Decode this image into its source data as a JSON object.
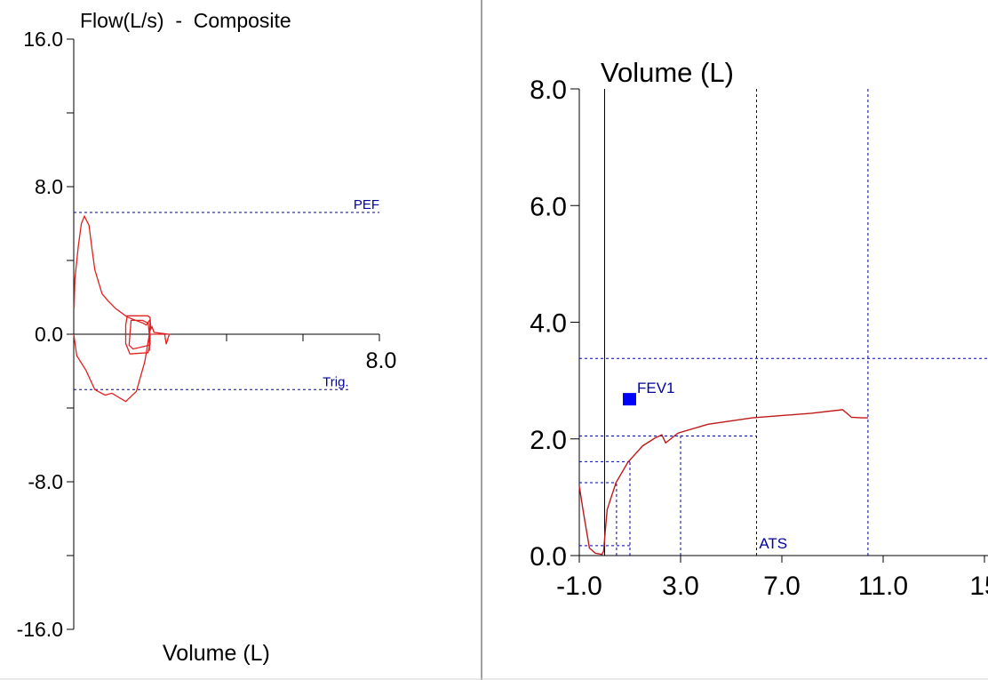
{
  "chart_data": [
    {
      "type": "line",
      "title": "Flow(L/s)  -  Composite",
      "xlabel": "Volume (L)",
      "ylabel": "Flow(L/s)",
      "xlim": [
        0,
        8
      ],
      "ylim": [
        -16,
        16
      ],
      "x_tick_labels": [
        {
          "value": 8,
          "label": "8.0"
        }
      ],
      "x_ticks": [
        2,
        4,
        6,
        8
      ],
      "y_tick_labels": [
        {
          "value": 16,
          "label": "16.0"
        },
        {
          "value": 8,
          "label": "8.0"
        },
        {
          "value": 0,
          "label": "0.0"
        },
        {
          "value": -8,
          "label": "-8.0"
        },
        {
          "value": -16,
          "label": "-16.0"
        }
      ],
      "y_ticks": [
        16,
        12,
        8,
        4,
        0,
        -4,
        -8,
        -12,
        -16
      ],
      "reference_lines": [
        {
          "name": "PEF",
          "label": "PEF",
          "y": 6.6,
          "x_range": [
            0,
            8
          ]
        },
        {
          "name": "Trig",
          "label": "Trig.",
          "y": -3.0,
          "x_range": [
            0,
            7.2
          ]
        }
      ],
      "series": [
        {
          "name": "flow-volume-loop",
          "color": "#e02020",
          "points": [
            [
              0.01,
              1.4
            ],
            [
              0.03,
              3.0
            ],
            [
              0.12,
              4.8
            ],
            [
              0.2,
              6.0
            ],
            [
              0.28,
              6.4
            ],
            [
              0.4,
              5.9
            ],
            [
              0.48,
              4.6
            ],
            [
              0.55,
              3.5
            ],
            [
              0.74,
              2.2
            ],
            [
              0.9,
              1.8
            ],
            [
              1.09,
              1.4
            ],
            [
              1.4,
              0.93
            ],
            [
              1.79,
              0.62
            ],
            [
              1.9,
              0.5
            ],
            [
              2.0,
              0.8
            ],
            [
              2.02,
              0.29
            ],
            [
              2.05,
              0.4
            ],
            [
              2.1,
              0.1
            ],
            [
              2.3,
              0.05
            ],
            [
              2.5,
              0.0
            ],
            [
              2.42,
              -0.54
            ],
            [
              2.38,
              0.0
            ],
            [
              2.0,
              0.0
            ],
            [
              1.98,
              -0.9
            ],
            [
              2.0,
              0.9
            ],
            [
              1.94,
              1.0
            ],
            [
              1.6,
              1.0
            ],
            [
              1.4,
              1.0
            ],
            [
              1.36,
              0.5
            ],
            [
              1.36,
              -0.5
            ],
            [
              1.47,
              -1.07
            ],
            [
              1.94,
              -1.0
            ],
            [
              2.0,
              -0.5
            ],
            [
              1.95,
              0.6
            ],
            [
              1.8,
              0.75
            ],
            [
              1.5,
              0.75
            ],
            [
              1.45,
              -0.6
            ],
            [
              1.55,
              -0.8
            ],
            [
              1.98,
              -0.6
            ],
            [
              1.98,
              0.0
            ],
            [
              1.86,
              -1.48
            ],
            [
              1.64,
              -3.1
            ],
            [
              1.36,
              -3.65
            ],
            [
              1.0,
              -3.2
            ],
            [
              0.82,
              -3.3
            ],
            [
              0.55,
              -3.0
            ],
            [
              0.32,
              -1.96
            ],
            [
              0.08,
              -1.16
            ],
            [
              0.0,
              0.0
            ]
          ]
        }
      ]
    },
    {
      "type": "line",
      "title": "Volume (L)",
      "ylabel": "Volume (L)",
      "xlim": [
        -1,
        15
      ],
      "ylim": [
        0,
        8
      ],
      "x_tick_labels": [
        {
          "value": -1,
          "label": "-1.0"
        },
        {
          "value": 3,
          "label": "3.0"
        },
        {
          "value": 7,
          "label": "7.0"
        },
        {
          "value": 11,
          "label": "11.0"
        },
        {
          "value": 15,
          "label": "15"
        }
      ],
      "y_tick_labels": [
        {
          "value": 8,
          "label": "8.0"
        },
        {
          "value": 6,
          "label": "6.0"
        },
        {
          "value": 4,
          "label": "4.0"
        },
        {
          "value": 2,
          "label": "2.0"
        },
        {
          "value": 0,
          "label": "0.0"
        }
      ],
      "zero_time_line": 0,
      "reference_lines_h": [
        {
          "y": 3.38,
          "x_range": [
            -1,
            15.2
          ]
        },
        {
          "y": 2.05,
          "x_range": [
            -1,
            6.0
          ]
        },
        {
          "y": 1.61,
          "x_range": [
            -1,
            1.0
          ]
        },
        {
          "y": 1.25,
          "x_range": [
            -1,
            0.47
          ]
        },
        {
          "y": 0.17,
          "x_range": [
            -1,
            1.0
          ]
        }
      ],
      "reference_lines_v": [
        {
          "x": 6.0,
          "y_range": [
            0,
            8
          ]
        },
        {
          "x": 10.4,
          "y_range": [
            0,
            8
          ]
        },
        {
          "x": 3.0,
          "y_range": [
            0,
            2.05
          ]
        },
        {
          "x": 1.0,
          "y_range": [
            0,
            1.61
          ]
        },
        {
          "x": 0.47,
          "y_range": [
            0,
            1.25
          ]
        }
      ],
      "markers": [
        {
          "name": "FEV1",
          "label": "FEV1",
          "x": 1.0,
          "y": 2.68,
          "color": "#0000ff"
        }
      ],
      "annotations": [
        {
          "label": "ATS",
          "x": 6.1,
          "y": 0.12
        }
      ],
      "series": [
        {
          "name": "volume-time",
          "color": "#c01818",
          "points": [
            [
              -1.0,
              1.19
            ],
            [
              -0.84,
              0.74
            ],
            [
              -0.6,
              0.13
            ],
            [
              -0.37,
              0.04
            ],
            [
              -0.1,
              0.02
            ],
            [
              -0.04,
              0.08
            ],
            [
              0.03,
              0.45
            ],
            [
              0.1,
              0.79
            ],
            [
              0.45,
              1.25
            ],
            [
              0.92,
              1.6
            ],
            [
              1.5,
              1.88
            ],
            [
              1.97,
              2.01
            ],
            [
              2.26,
              2.07
            ],
            [
              2.41,
              1.93
            ],
            [
              2.9,
              2.1
            ],
            [
              4.08,
              2.25
            ],
            [
              5.83,
              2.36
            ],
            [
              8.17,
              2.44
            ],
            [
              9.4,
              2.5
            ],
            [
              9.75,
              2.37
            ],
            [
              10.18,
              2.36
            ],
            [
              10.4,
              2.36
            ]
          ]
        }
      ]
    }
  ]
}
